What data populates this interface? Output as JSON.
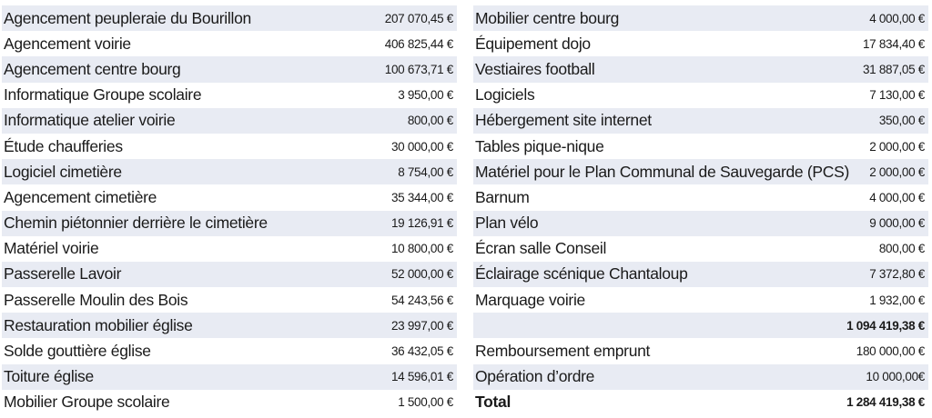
{
  "left_table": {
    "rows": [
      {
        "label": "Agencement peupleraie du Bourillon",
        "value": "207 070,45 €"
      },
      {
        "label": "Agencement voirie",
        "value": "406 825,44 €"
      },
      {
        "label": "Agencement centre bourg",
        "value": "100 673,71 €"
      },
      {
        "label": "Informatique Groupe scolaire",
        "value": "3 950,00 €"
      },
      {
        "label": "Informatique atelier voirie",
        "value": "800,00 €"
      },
      {
        "label": "Étude chaufferies",
        "value": "30 000,00 €"
      },
      {
        "label": "Logiciel cimetière",
        "value": "8 754,00 €"
      },
      {
        "label": "Agencement cimetière",
        "value": "35 344,00 €"
      },
      {
        "label": "Chemin piétonnier derrière le cimetière",
        "value": "19 126,91 €"
      },
      {
        "label": "Matériel voirie",
        "value": "10 800,00 €"
      },
      {
        "label": "Passerelle Lavoir",
        "value": "52 000,00 €"
      },
      {
        "label": "Passerelle Moulin des Bois",
        "value": "54 243,56 €"
      },
      {
        "label": "Restauration mobilier église",
        "value": "23 997,00 €"
      },
      {
        "label": "Solde gouttière église",
        "value": "36 432,05 €"
      },
      {
        "label": "Toiture église",
        "value": "14 596,01 €"
      },
      {
        "label": "Mobilier Groupe scolaire",
        "value": "1 500,00 €"
      }
    ]
  },
  "right_table": {
    "rows": [
      {
        "label": "Mobilier centre bourg",
        "value": "4 000,00 €"
      },
      {
        "label": "Équipement dojo",
        "value": "17 834,40 €"
      },
      {
        "label": "Vestiaires football",
        "value": "31 887,05 €"
      },
      {
        "label": "Logiciels",
        "value": "7 130,00 €"
      },
      {
        "label": "Hébergement site internet",
        "value": "350,00 €"
      },
      {
        "label": "Tables pique-nique",
        "value": "2 000,00 €"
      },
      {
        "label": "Matériel pour le Plan Communal de Sauvegarde (PCS)",
        "value": "2 000,00 €"
      },
      {
        "label": "Barnum",
        "value": "4 000,00 €"
      },
      {
        "label": "Plan vélo",
        "value": "9 000,00 €"
      },
      {
        "label": "Écran salle Conseil",
        "value": "800,00 €"
      },
      {
        "label": "Éclairage scénique Chantaloup",
        "value": "7 372,80 €"
      },
      {
        "label": "Marquage voirie",
        "value": "1 932,00 €"
      },
      {
        "label": "",
        "value": "1 094 419,38 €"
      },
      {
        "label": "Remboursement emprunt",
        "value": "180 000,00 €"
      },
      {
        "label": "Opération d’ordre",
        "value": "10 000,00€"
      },
      {
        "label": "Total",
        "value": "1 284 419,38 €"
      }
    ]
  },
  "colors": {
    "row_shade": "#e8ebf3",
    "text": "#1a1a1a"
  }
}
